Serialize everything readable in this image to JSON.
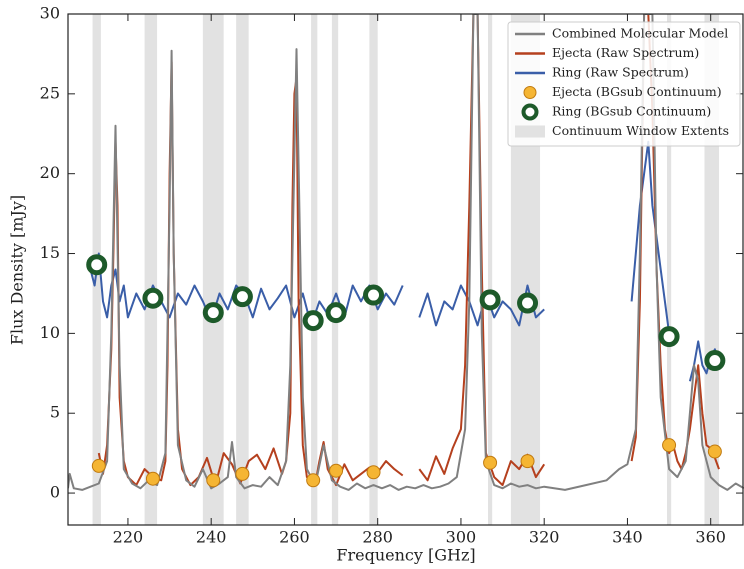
{
  "chart_data": {
    "type": "line",
    "xlabel": "Frequency [GHz]",
    "ylabel": "Flux Density [mJy]",
    "xlim": [
      205.6,
      368
    ],
    "ylim": [
      -2,
      30
    ],
    "xticks": [
      220,
      240,
      260,
      280,
      300,
      320,
      340,
      360
    ],
    "yticks": [
      0,
      5,
      10,
      15,
      20,
      25,
      30
    ],
    "legend": "upper right",
    "windows": {
      "name": "Continuum Window Extents",
      "color": "#e2e2e2",
      "ranges": [
        [
          211.5,
          213.5
        ],
        [
          224,
          227
        ],
        [
          238,
          243
        ],
        [
          246,
          249
        ],
        [
          264,
          265.5
        ],
        [
          269,
          270.5
        ],
        [
          278,
          280
        ],
        [
          306.5,
          307.5
        ],
        [
          312,
          319
        ],
        [
          349.5,
          350.5
        ],
        [
          358.5,
          362
        ]
      ]
    },
    "series": [
      {
        "name": "Combined Molecular Model",
        "type": "line",
        "color": "#808080",
        "x": [
          205.6,
          206,
          207,
          209,
          211,
          213,
          215,
          216,
          217,
          218,
          219,
          221,
          223,
          225,
          227,
          229,
          230,
          230.5,
          231,
          232,
          234,
          236,
          238,
          240,
          242,
          244,
          245,
          246,
          248,
          250,
          252,
          254,
          256,
          258,
          259,
          260.5,
          262,
          263,
          265,
          267,
          269,
          271,
          273,
          275,
          277,
          279,
          281,
          283,
          285,
          287,
          289,
          291,
          293,
          295,
          297,
          299,
          301,
          302,
          303,
          304,
          305,
          306,
          308,
          310,
          312,
          314,
          316,
          318,
          320,
          325,
          330,
          335,
          338,
          340,
          342,
          343,
          344,
          346,
          347,
          348,
          350,
          352,
          354,
          355,
          356,
          357,
          358,
          360,
          362,
          364,
          366,
          368
        ],
        "values": [
          0.3,
          1.2,
          0.3,
          0.2,
          0.4,
          0.6,
          2,
          10,
          23,
          8,
          1.5,
          0.6,
          0.3,
          0.8,
          0.5,
          2.5,
          18,
          27.7,
          15,
          3,
          0.8,
          0.4,
          1.5,
          0.3,
          0.6,
          1,
          3.2,
          1,
          0.3,
          0.5,
          0.4,
          1,
          0.5,
          2,
          8,
          27.8,
          6,
          1.5,
          0.5,
          3,
          0.8,
          0.4,
          0.2,
          0.6,
          0.3,
          0.5,
          0.3,
          0.5,
          0.2,
          0.4,
          0.3,
          0.5,
          0.3,
          0.4,
          0.6,
          1,
          4,
          12,
          30,
          30,
          10,
          2,
          0.5,
          0.3,
          0.6,
          0.4,
          0.5,
          0.3,
          0.4,
          0.2,
          0.5,
          0.8,
          1.5,
          1.8,
          4,
          15,
          30,
          30,
          14,
          6,
          1.5,
          1,
          2,
          5,
          8,
          7,
          3,
          1,
          0.5,
          0.2,
          0.6,
          0.3
        ]
      },
      {
        "name": "Ejecta (Raw Spectrum)",
        "type": "line",
        "color": "#b5401e",
        "x": [
          213,
          214,
          215,
          216,
          216.5,
          217,
          217.5,
          218,
          219,
          220,
          222,
          224,
          226,
          228,
          229,
          229.5,
          230,
          230.5,
          231,
          232,
          233,
          235,
          237,
          239,
          241,
          243,
          245,
          247,
          249,
          251,
          253,
          255,
          257,
          258,
          259,
          259.5,
          260,
          260.5,
          261,
          262,
          263,
          265,
          266,
          267,
          268,
          270,
          272,
          274,
          276,
          278,
          280,
          282,
          284,
          286,
          288,
          290,
          292,
          294,
          296,
          298,
          300,
          301,
          302,
          303,
          304,
          305,
          306,
          308,
          310,
          312,
          314,
          316,
          318,
          320,
          330,
          341,
          342,
          343,
          344,
          345,
          346,
          347,
          348,
          349,
          350,
          351,
          352,
          353,
          354,
          355,
          356,
          357,
          358,
          359,
          360,
          361,
          362
        ],
        "values": [
          2.5,
          1.2,
          3,
          9,
          15,
          22,
          18,
          6,
          2,
          1,
          0.5,
          1.5,
          1,
          0.8,
          2,
          8,
          20,
          27,
          15,
          4,
          1.5,
          0.5,
          1,
          2.2,
          0.5,
          2.5,
          1.8,
          0.6,
          2,
          2.4,
          1.5,
          2.8,
          1.2,
          2,
          5,
          18,
          25,
          26,
          12,
          3,
          1,
          0.6,
          2,
          3.2,
          1.5,
          0.5,
          1.8,
          0.8,
          1.2,
          1.6,
          1.3,
          2,
          1.5,
          1.1,
          null,
          1.5,
          0.8,
          2.3,
          1.2,
          2.8,
          4,
          8,
          18,
          30,
          30,
          14,
          2.5,
          1,
          0.5,
          2,
          1.5,
          2.4,
          1,
          1.8,
          null,
          2,
          3.5,
          12,
          30,
          30,
          24,
          14,
          8,
          4,
          2.5,
          3,
          2,
          1.5,
          2.5,
          4,
          6,
          8,
          5,
          3,
          2.8,
          2.2,
          1.5
        ]
      },
      {
        "name": "Ring (Raw Spectrum)",
        "type": "line",
        "color": "#3a5ea8",
        "x": [
          211,
          212,
          213,
          214,
          215,
          216,
          217,
          218,
          219,
          220,
          222,
          224,
          226,
          228,
          230,
          232,
          234,
          236,
          238,
          240,
          242,
          244,
          246,
          248,
          250,
          252,
          254,
          256,
          258,
          260,
          262,
          264,
          266,
          268,
          270,
          272,
          274,
          276,
          278,
          280,
          282,
          284,
          286,
          288,
          290,
          292,
          294,
          296,
          298,
          300,
          302,
          304,
          306,
          308,
          310,
          312,
          314,
          316,
          318,
          320,
          330,
          341,
          342,
          343,
          344,
          345,
          346,
          347,
          348,
          349,
          350,
          352,
          355,
          356,
          357,
          358,
          359,
          360,
          361,
          362
        ],
        "values": [
          14,
          13,
          15,
          12,
          11,
          13,
          14,
          12,
          13,
          11,
          12.5,
          11.5,
          13,
          12,
          11,
          12.5,
          11.8,
          13,
          12,
          10.8,
          12.5,
          11.5,
          13,
          12.4,
          11,
          12.8,
          11.5,
          12.2,
          13,
          11,
          12.5,
          10.5,
          12,
          11.2,
          12.5,
          11,
          13,
          12,
          13,
          11.5,
          12.5,
          11.8,
          13,
          null,
          11,
          12.5,
          10.5,
          12,
          11.5,
          13,
          12,
          10.5,
          12.5,
          11,
          12,
          11.5,
          10.5,
          13,
          11,
          11.5,
          null,
          12,
          15,
          18,
          20,
          22,
          18,
          16,
          14,
          12,
          10,
          null,
          7,
          8,
          9.5,
          8,
          7.5,
          8.5,
          9,
          8
        ]
      },
      {
        "name": "Ejecta (BGsub Continuum)",
        "type": "scatter",
        "color": "#f5b533",
        "x": [
          213,
          226,
          240.5,
          247.5,
          264.5,
          270,
          279,
          307,
          316,
          350,
          361
        ],
        "values": [
          1.7,
          0.9,
          0.8,
          1.2,
          0.8,
          1.4,
          1.3,
          1.9,
          2.0,
          3.0,
          2.6
        ]
      },
      {
        "name": "Ring (BGsub Continuum)",
        "type": "ring",
        "color": "#1d5a2a",
        "x": [
          212.5,
          226,
          240.5,
          247.5,
          264.5,
          270,
          279,
          307,
          316,
          350,
          361
        ],
        "values": [
          14.3,
          12.2,
          11.3,
          12.3,
          10.8,
          11.3,
          12.4,
          12.1,
          11.9,
          9.8,
          8.3
        ]
      }
    ]
  }
}
